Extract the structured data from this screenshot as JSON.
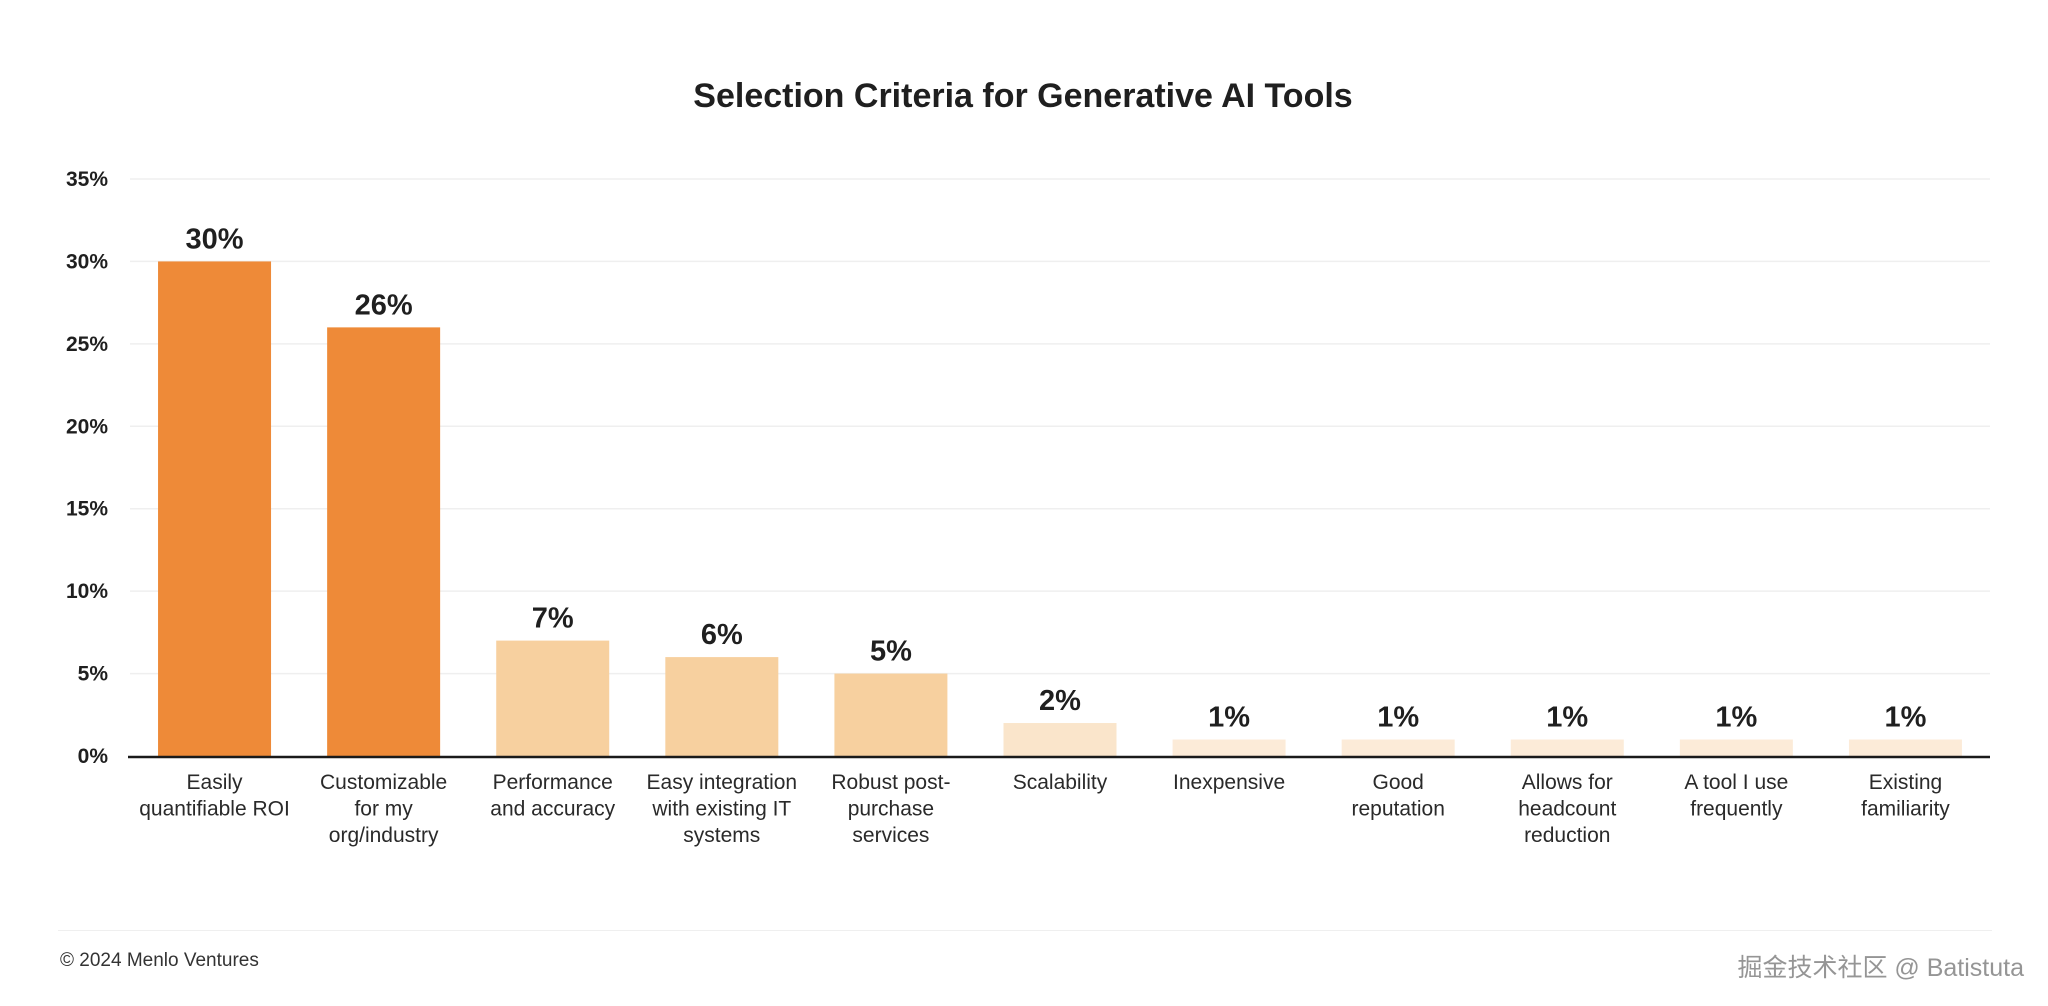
{
  "chart_data": {
    "type": "bar",
    "title": "Selection Criteria for Generative AI Tools",
    "xlabel": "",
    "ylabel": "",
    "ylim": [
      0,
      35
    ],
    "yticks": [
      0,
      5,
      10,
      15,
      20,
      25,
      30,
      35
    ],
    "ytick_labels": [
      "0%",
      "5%",
      "10%",
      "15%",
      "20%",
      "25%",
      "30%",
      "35%"
    ],
    "grid": true,
    "legend": "none",
    "categories": [
      [
        "Easily",
        "quantifiable ROI"
      ],
      [
        "Customizable",
        "for my",
        "org/industry"
      ],
      [
        "Performance",
        "and accuracy"
      ],
      [
        "Easy integration",
        "with existing IT",
        "systems"
      ],
      [
        "Robust post-",
        "purchase",
        "services"
      ],
      [
        "Scalability"
      ],
      [
        "Inexpensive"
      ],
      [
        "Good",
        "reputation"
      ],
      [
        "Allows for",
        "headcount",
        "reduction"
      ],
      [
        "A tool I use",
        "frequently"
      ],
      [
        "Existing",
        "familiarity"
      ]
    ],
    "values": [
      30,
      26,
      7,
      6,
      5,
      2,
      1,
      1,
      1,
      1,
      1
    ],
    "data_labels": [
      "30%",
      "26%",
      "7%",
      "6%",
      "5%",
      "2%",
      "1%",
      "1%",
      "1%",
      "1%",
      "1%"
    ],
    "colors": [
      "#EE8A38",
      "#EE8A38",
      "#F7D09F",
      "#F7D09F",
      "#F7D09F",
      "#FAE5CB",
      "#FCEBD8",
      "#FCEBD8",
      "#FCEBD8",
      "#FCEBD8",
      "#FCEBD8"
    ]
  },
  "footer": {
    "copyright": "© 2024 Menlo Ventures",
    "watermark": "掘金技术社区 @ Batistuta"
  }
}
